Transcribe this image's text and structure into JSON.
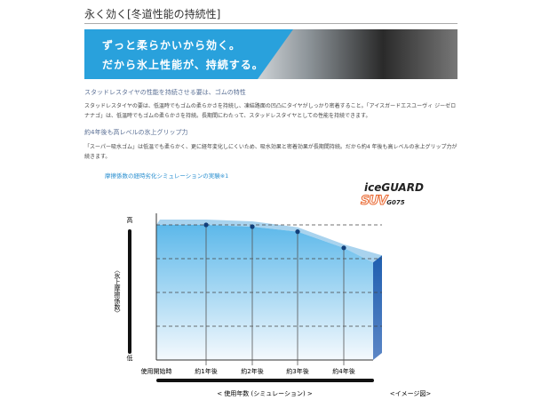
{
  "header": {
    "title": "永く効く[冬道性能の持続性]"
  },
  "banner": {
    "line1": "ずっと柔らかいから効く。",
    "line2": "だから氷上性能が、持続する。"
  },
  "sections": [
    {
      "heading": "スタッドレスタイヤの性能を持続させる要は、ゴムの特性",
      "body": "スタッドレスタイヤの要は、低温時でもゴムの柔らかさを持続し、凍結路面の凹凸にタイヤがしっかり密着すること。「アイスガードエスユーヴィ ジーゼロナナゴ」は、低温時でもゴムの柔らかさを持続。長期間にわたって、スタッドレスタイヤとしての性能を持続できます。"
    },
    {
      "heading": "約4年後も高レベルの氷上グリップ力",
      "body": "「スーパー吸水ゴム」は低温でも柔らかく、更に経年変化しにくいため、吸水効果と密着効果が長期間持続。だから約4 年後も高レベルの氷上グリップ力が続きます。"
    }
  ],
  "logo": {
    "line1": "iceGUARD",
    "line2": "SUV",
    "line3": "G075"
  },
  "chart_data": {
    "type": "area",
    "title": "摩擦係数の経時劣化シミュレーションの実験※1",
    "categories": [
      "使用開始時",
      "約1年後",
      "約2年後",
      "約3年後",
      "約4年後"
    ],
    "values": [
      100,
      100,
      98.7,
      95,
      83
    ],
    "ylim": [
      0,
      105
    ],
    "ylabel": "〈氷上摩擦係数〉",
    "ytick_high": "高",
    "ytick_low": "低",
    "xlabel": "< 使用年数 (シミュレーション) >",
    "note": "<イメージ図>",
    "grid": true,
    "colors": {
      "area_top": "#5cb8ea",
      "area_bottom": "#f4f9fd",
      "side": "#1f5fb0",
      "point": "#123f7a"
    }
  }
}
